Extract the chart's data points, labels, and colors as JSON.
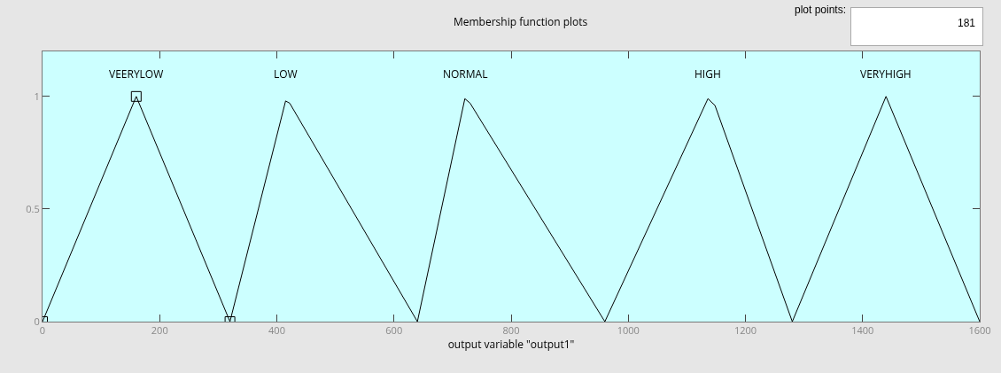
{
  "chart_data": {
    "type": "line",
    "title": "Membership function plots",
    "xlabel": "output variable \"output1\"",
    "annotations": [
      "plot points:",
      "181"
    ],
    "xlim": [
      0,
      1600
    ],
    "xticks": [
      0,
      200,
      400,
      600,
      800,
      1000,
      1200,
      1400,
      1600
    ],
    "ylim": [
      0,
      1.2
    ],
    "yticks": [
      0,
      0.5,
      1
    ],
    "grid": false,
    "legend": false,
    "line_style": "solid",
    "series": [
      {
        "name": "VEERYLOW",
        "color": "#000000",
        "marker": "square",
        "x": [
          0,
          160,
          320
        ],
        "values": [
          0,
          1,
          0
        ]
      },
      {
        "name": "LOW",
        "color": "#000000",
        "marker": "none",
        "x": [
          320,
          415,
          422,
          640
        ],
        "values": [
          0,
          0.98,
          0.97,
          0
        ]
      },
      {
        "name": "NORMAL",
        "color": "#000000",
        "marker": "none",
        "x": [
          640,
          721,
          730,
          960
        ],
        "values": [
          0,
          0.99,
          0.97,
          0
        ]
      },
      {
        "name": "HIGH",
        "color": "#000000",
        "marker": "none",
        "x": [
          960,
          1136,
          1148,
          1280
        ],
        "values": [
          0,
          0.99,
          0.96,
          0
        ]
      },
      {
        "name": "VERYHIGH",
        "color": "#000000",
        "marker": "none",
        "x": [
          1280,
          1440,
          1600
        ],
        "values": [
          0,
          1,
          0
        ]
      }
    ]
  }
}
